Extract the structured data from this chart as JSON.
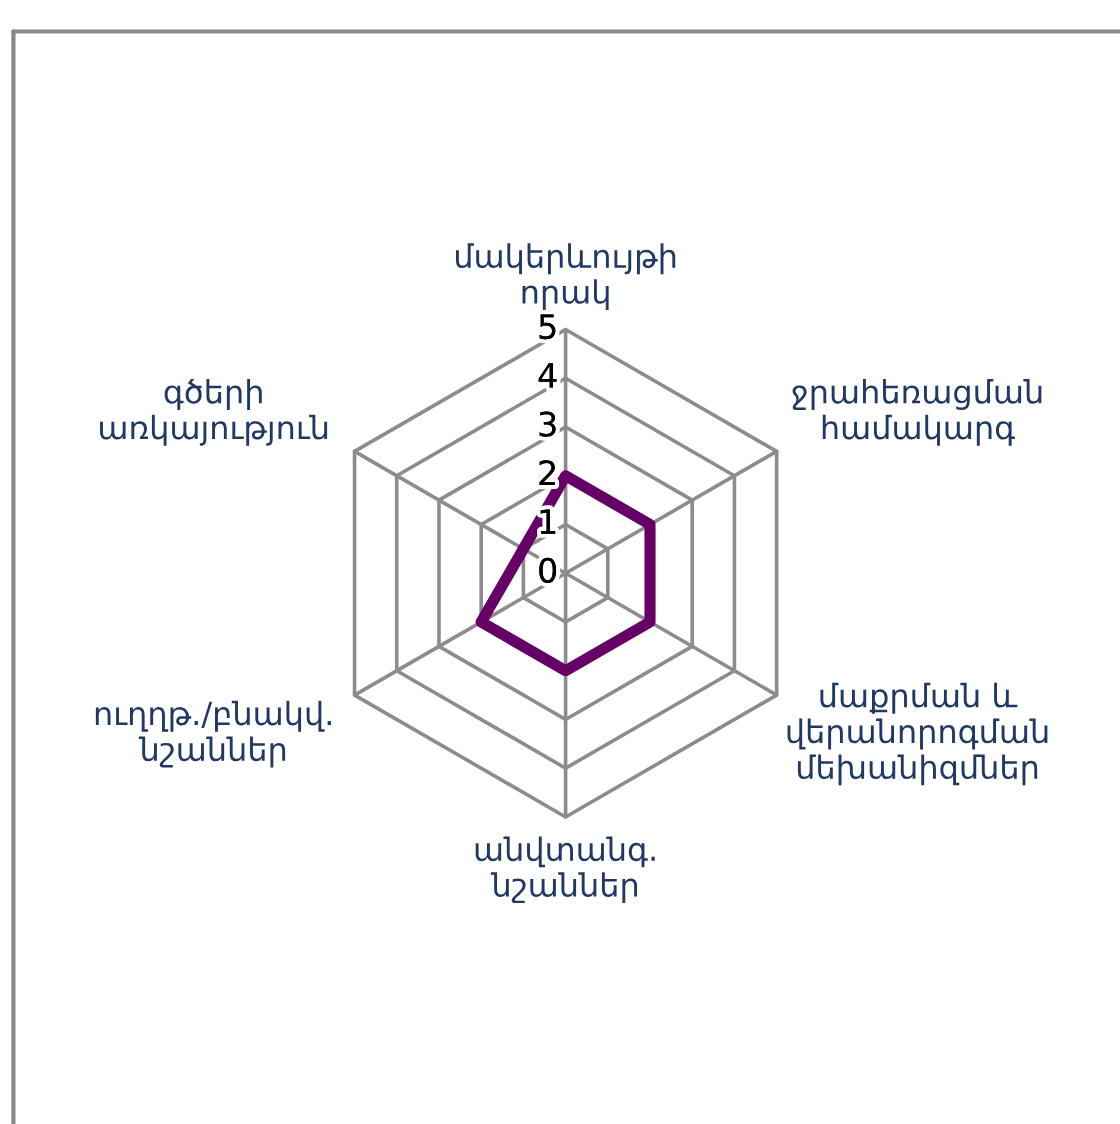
{
  "chart_data": {
    "type": "radar",
    "categories": [
      "մակերևույթի որակ",
      "ջրահեռացման համակարգ",
      "մաքրման և վերանորոգման մեխանիզմներ",
      "անվտանգ. նշաններ",
      "ուղղթ./բնակվ. նշաններ",
      "գծերի առկայություն"
    ],
    "series": [
      {
        "color": "#660066",
        "values": [
          2,
          2,
          2,
          2,
          2,
          1
        ]
      }
    ],
    "ylim": [
      0,
      5
    ],
    "yticks": [
      0,
      1,
      2,
      3,
      4,
      5
    ],
    "grid": true
  }
}
